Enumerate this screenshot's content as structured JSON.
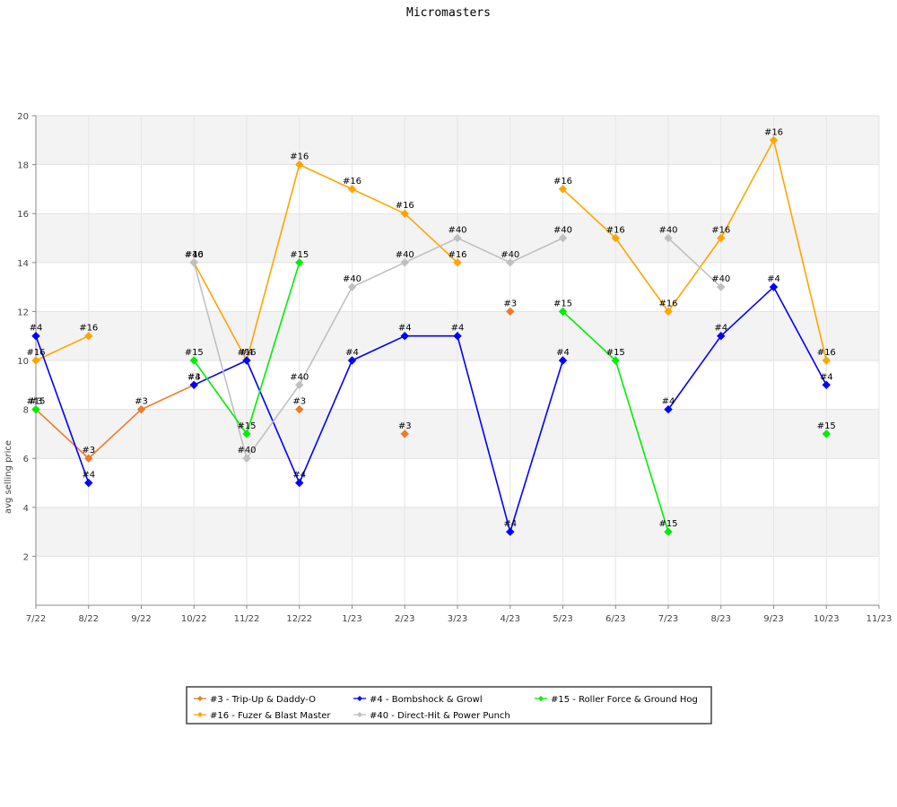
{
  "chart_data": {
    "type": "line",
    "title": "Micromasters",
    "xlabel": "",
    "ylabel": "avg selling price",
    "categories": [
      "7/22",
      "8/22",
      "9/22",
      "10/22",
      "11/22",
      "12/22",
      "1/23",
      "2/23",
      "3/23",
      "4/23",
      "5/23",
      "6/23",
      "7/23",
      "8/23",
      "9/23",
      "10/23",
      "11/23"
    ],
    "ylim": [
      0,
      20
    ],
    "yticks": [
      2,
      4,
      6,
      8,
      10,
      12,
      14,
      16,
      18,
      20
    ],
    "grid": true,
    "legend_position": "bottom",
    "series": [
      {
        "name": "#3 - Trip-Up & Daddy-O",
        "label": "#3",
        "color": "#f07a28",
        "values": [
          8,
          6,
          8,
          9,
          null,
          8,
          null,
          7,
          null,
          12,
          null,
          null,
          null,
          null,
          null,
          null,
          null
        ]
      },
      {
        "name": "#16 - Fuzer & Blast Master",
        "label": "#16",
        "color": "#ffa500",
        "values": [
          10,
          11,
          null,
          14,
          10,
          18,
          17,
          16,
          14,
          null,
          17,
          15,
          12,
          15,
          19,
          10,
          null
        ]
      },
      {
        "name": "#4 - Bombshock & Growl",
        "label": "#4",
        "color": "#0000ff",
        "values": [
          11,
          5,
          null,
          9,
          10,
          5,
          10,
          11,
          11,
          3,
          10,
          null,
          8,
          11,
          13,
          9,
          null
        ]
      },
      {
        "name": "#40 - Direct-Hit & Power Punch",
        "label": "#40",
        "color": "#c0c0c0",
        "values": [
          null,
          null,
          null,
          14,
          6,
          9,
          13,
          14,
          15,
          14,
          15,
          null,
          15,
          13,
          null,
          null,
          null
        ]
      },
      {
        "name": "#15 - Roller Force & Ground Hog",
        "label": "#15",
        "color": "#00ee00",
        "values": [
          8,
          null,
          null,
          10,
          7,
          14,
          null,
          null,
          null,
          null,
          12,
          10,
          3,
          null,
          null,
          7,
          null
        ]
      }
    ]
  }
}
